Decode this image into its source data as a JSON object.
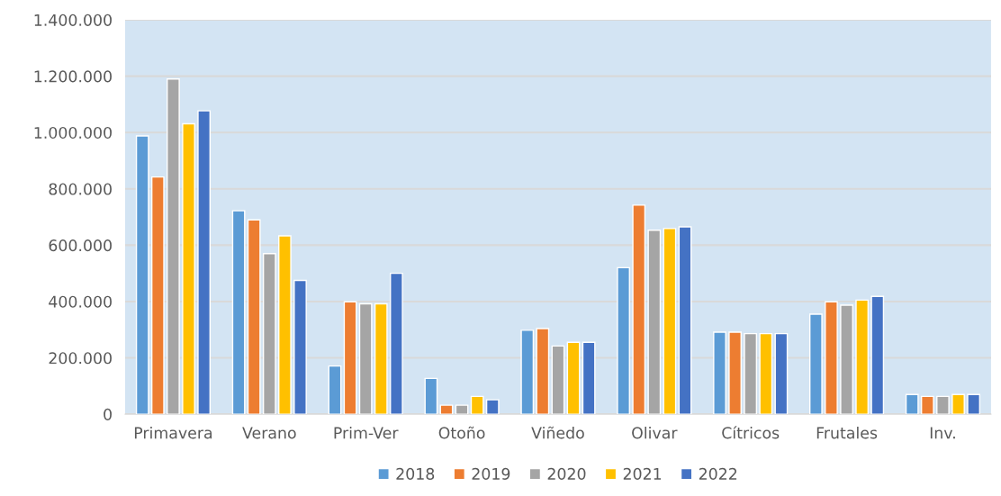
{
  "chart_data": {
    "type": "bar",
    "categories": [
      "Primavera",
      "Verano",
      "Prim-Ver",
      "Otoño",
      "Viñedo",
      "Olivar",
      "Cítricos",
      "Frutales",
      "Inv."
    ],
    "series": [
      {
        "name": "2018",
        "color": "#5b9bd5",
        "values": [
          988000,
          722000,
          171000,
          127000,
          298000,
          520000,
          291000,
          355000,
          70000
        ]
      },
      {
        "name": "2019",
        "color": "#ed7d31",
        "values": [
          842000,
          690000,
          399000,
          32000,
          304000,
          742000,
          291000,
          399000,
          63000
        ]
      },
      {
        "name": "2020",
        "color": "#a5a5a5",
        "values": [
          1190000,
          570000,
          392000,
          32000,
          242000,
          653000,
          286000,
          387000,
          63000
        ]
      },
      {
        "name": "2021",
        "color": "#ffc000",
        "values": [
          1031000,
          633000,
          392000,
          63000,
          255000,
          659000,
          286000,
          405000,
          70000
        ]
      },
      {
        "name": "2022",
        "color": "#4472c4",
        "values": [
          1077000,
          475000,
          500000,
          51000,
          255000,
          665000,
          286000,
          418000,
          70000
        ]
      }
    ],
    "ylim": [
      0,
      1400000
    ],
    "yticks": [
      {
        "value": 0,
        "label": "0"
      },
      {
        "value": 200000,
        "label": "200.000"
      },
      {
        "value": 400000,
        "label": "400.000"
      },
      {
        "value": 600000,
        "label": "600.000"
      },
      {
        "value": 800000,
        "label": "800.000"
      },
      {
        "value": 1000000,
        "label": "1.000.000"
      },
      {
        "value": 1200000,
        "label": "1.200.000"
      },
      {
        "value": 1400000,
        "label": "1.400.000"
      }
    ],
    "grid": "y",
    "legend": "bottom"
  }
}
